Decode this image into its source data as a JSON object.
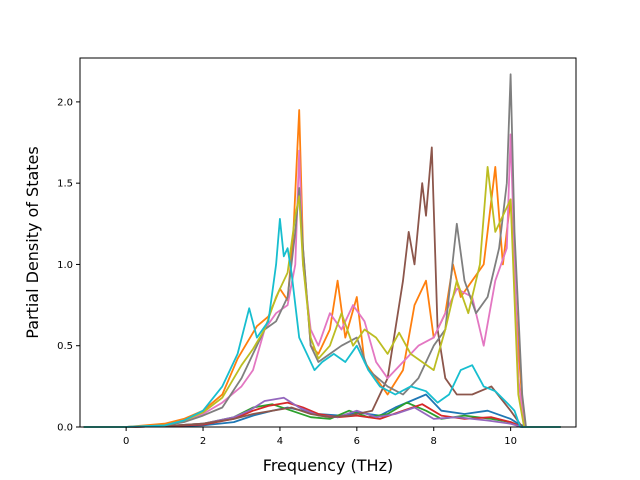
{
  "chart_data": {
    "type": "line",
    "title": "",
    "xlabel": "Frequency (THz)",
    "ylabel": "Partial Density of States",
    "xlim": [
      -1.2,
      11.7
    ],
    "ylim": [
      0.0,
      2.27
    ],
    "xticks": [
      0,
      2,
      4,
      6,
      8,
      10
    ],
    "xtick_labels": [
      "0",
      "2",
      "4",
      "6",
      "8",
      "10"
    ],
    "yticks": [
      0.0,
      0.5,
      1.0,
      1.5,
      2.0
    ],
    "ytick_labels": [
      "0.0",
      "0.5",
      "1.0",
      "1.5",
      "2.0"
    ],
    "grid": false,
    "legend": "none",
    "series": [
      {
        "color": "#1f77b4",
        "points": [
          [
            -1.1,
            0
          ],
          [
            0,
            0
          ],
          [
            1,
            0.005
          ],
          [
            2,
            0.01
          ],
          [
            2.8,
            0.03
          ],
          [
            3.3,
            0.07
          ],
          [
            3.8,
            0.1
          ],
          [
            4.2,
            0.12
          ],
          [
            4.6,
            0.1
          ],
          [
            5,
            0.08
          ],
          [
            5.6,
            0.07
          ],
          [
            6,
            0.09
          ],
          [
            6.6,
            0.07
          ],
          [
            7,
            0.12
          ],
          [
            7.4,
            0.16
          ],
          [
            7.8,
            0.2
          ],
          [
            8.2,
            0.1
          ],
          [
            8.8,
            0.08
          ],
          [
            9.4,
            0.1
          ],
          [
            10,
            0.05
          ],
          [
            10.2,
            0.02
          ],
          [
            10.4,
            0
          ],
          [
            11.3,
            0
          ]
        ]
      },
      {
        "color": "#ff7f0e",
        "points": [
          [
            -1.1,
            0
          ],
          [
            0,
            0
          ],
          [
            1,
            0.02
          ],
          [
            1.5,
            0.05
          ],
          [
            2,
            0.1
          ],
          [
            2.5,
            0.2
          ],
          [
            2.9,
            0.42
          ],
          [
            3.1,
            0.5
          ],
          [
            3.4,
            0.62
          ],
          [
            3.7,
            0.68
          ],
          [
            4,
            0.85
          ],
          [
            4.2,
            0.78
          ],
          [
            4.35,
            1.2
          ],
          [
            4.5,
            1.95
          ],
          [
            4.6,
            1.1
          ],
          [
            4.8,
            0.5
          ],
          [
            5,
            0.45
          ],
          [
            5.3,
            0.6
          ],
          [
            5.5,
            0.9
          ],
          [
            5.7,
            0.55
          ],
          [
            6,
            0.8
          ],
          [
            6.2,
            0.4
          ],
          [
            6.5,
            0.3
          ],
          [
            6.8,
            0.2
          ],
          [
            7.2,
            0.35
          ],
          [
            7.5,
            0.75
          ],
          [
            7.8,
            0.9
          ],
          [
            8,
            0.55
          ],
          [
            8.3,
            0.7
          ],
          [
            8.5,
            1.0
          ],
          [
            8.7,
            0.8
          ],
          [
            9,
            0.9
          ],
          [
            9.3,
            1.0
          ],
          [
            9.6,
            1.6
          ],
          [
            9.8,
            1.0
          ],
          [
            10,
            1.4
          ],
          [
            10.2,
            0.5
          ],
          [
            10.35,
            0
          ],
          [
            11.3,
            0
          ]
        ]
      },
      {
        "color": "#2ca02c",
        "points": [
          [
            -1.1,
            0
          ],
          [
            0,
            0
          ],
          [
            1,
            0.005
          ],
          [
            2,
            0.02
          ],
          [
            2.8,
            0.06
          ],
          [
            3.3,
            0.12
          ],
          [
            3.8,
            0.14
          ],
          [
            4.3,
            0.1
          ],
          [
            4.8,
            0.06
          ],
          [
            5.3,
            0.05
          ],
          [
            5.8,
            0.1
          ],
          [
            6.3,
            0.06
          ],
          [
            6.8,
            0.08
          ],
          [
            7.3,
            0.15
          ],
          [
            7.8,
            0.1
          ],
          [
            8.2,
            0.05
          ],
          [
            8.8,
            0.07
          ],
          [
            9.5,
            0.05
          ],
          [
            10,
            0.03
          ],
          [
            10.3,
            0
          ],
          [
            11.3,
            0
          ]
        ]
      },
      {
        "color": "#d62728",
        "points": [
          [
            -1.1,
            0
          ],
          [
            0,
            0
          ],
          [
            1,
            0.005
          ],
          [
            2,
            0.015
          ],
          [
            2.8,
            0.05
          ],
          [
            3.3,
            0.1
          ],
          [
            3.7,
            0.13
          ],
          [
            4.2,
            0.15
          ],
          [
            4.6,
            0.12
          ],
          [
            5,
            0.08
          ],
          [
            5.5,
            0.06
          ],
          [
            6,
            0.07
          ],
          [
            6.6,
            0.05
          ],
          [
            7.2,
            0.1
          ],
          [
            7.7,
            0.14
          ],
          [
            8.2,
            0.07
          ],
          [
            8.8,
            0.05
          ],
          [
            9.5,
            0.06
          ],
          [
            10,
            0.03
          ],
          [
            10.3,
            0
          ],
          [
            11.3,
            0
          ]
        ]
      },
      {
        "color": "#9467bd",
        "points": [
          [
            -1.1,
            0
          ],
          [
            0,
            0
          ],
          [
            1,
            0.005
          ],
          [
            2,
            0.02
          ],
          [
            2.8,
            0.06
          ],
          [
            3.2,
            0.1
          ],
          [
            3.6,
            0.16
          ],
          [
            4.1,
            0.18
          ],
          [
            4.5,
            0.12
          ],
          [
            5,
            0.07
          ],
          [
            5.5,
            0.06
          ],
          [
            6,
            0.1
          ],
          [
            6.5,
            0.06
          ],
          [
            7,
            0.08
          ],
          [
            7.5,
            0.12
          ],
          [
            8,
            0.05
          ],
          [
            8.6,
            0.06
          ],
          [
            9.4,
            0.04
          ],
          [
            10,
            0.02
          ],
          [
            10.3,
            0
          ],
          [
            11.3,
            0
          ]
        ]
      },
      {
        "color": "#8c564b",
        "points": [
          [
            -1.1,
            0
          ],
          [
            0,
            0
          ],
          [
            1,
            0.005
          ],
          [
            2,
            0.02
          ],
          [
            2.8,
            0.05
          ],
          [
            3.3,
            0.08
          ],
          [
            3.8,
            0.1
          ],
          [
            4.3,
            0.12
          ],
          [
            4.8,
            0.08
          ],
          [
            5.3,
            0.06
          ],
          [
            5.8,
            0.07
          ],
          [
            6.4,
            0.1
          ],
          [
            6.8,
            0.3
          ],
          [
            7,
            0.6
          ],
          [
            7.2,
            0.9
          ],
          [
            7.35,
            1.2
          ],
          [
            7.5,
            1.0
          ],
          [
            7.7,
            1.5
          ],
          [
            7.8,
            1.3
          ],
          [
            7.95,
            1.72
          ],
          [
            8.1,
            0.6
          ],
          [
            8.3,
            0.3
          ],
          [
            8.6,
            0.2
          ],
          [
            9,
            0.2
          ],
          [
            9.5,
            0.25
          ],
          [
            10,
            0.1
          ],
          [
            10.3,
            0
          ],
          [
            11.3,
            0
          ]
        ]
      },
      {
        "color": "#e377c2",
        "points": [
          [
            -1.1,
            0
          ],
          [
            0,
            0
          ],
          [
            1,
            0.01
          ],
          [
            1.5,
            0.04
          ],
          [
            2,
            0.08
          ],
          [
            2.5,
            0.15
          ],
          [
            3,
            0.25
          ],
          [
            3.3,
            0.35
          ],
          [
            3.6,
            0.6
          ],
          [
            3.9,
            0.7
          ],
          [
            4.2,
            0.75
          ],
          [
            4.4,
            1.0
          ],
          [
            4.5,
            1.7
          ],
          [
            4.6,
            1.0
          ],
          [
            4.8,
            0.6
          ],
          [
            5,
            0.5
          ],
          [
            5.3,
            0.7
          ],
          [
            5.6,
            0.6
          ],
          [
            5.9,
            0.75
          ],
          [
            6.2,
            0.65
          ],
          [
            6.5,
            0.4
          ],
          [
            6.8,
            0.3
          ],
          [
            7.2,
            0.4
          ],
          [
            7.6,
            0.5
          ],
          [
            8,
            0.55
          ],
          [
            8.3,
            0.7
          ],
          [
            8.6,
            0.85
          ],
          [
            9,
            0.8
          ],
          [
            9.3,
            0.5
          ],
          [
            9.6,
            0.9
          ],
          [
            9.9,
            1.1
          ],
          [
            10,
            1.8
          ],
          [
            10.2,
            0.3
          ],
          [
            10.35,
            0
          ],
          [
            11.3,
            0
          ]
        ]
      },
      {
        "color": "#7f7f7f",
        "points": [
          [
            -1.1,
            0
          ],
          [
            0,
            0
          ],
          [
            1,
            0.01
          ],
          [
            1.5,
            0.03
          ],
          [
            2,
            0.07
          ],
          [
            2.5,
            0.12
          ],
          [
            3,
            0.3
          ],
          [
            3.3,
            0.45
          ],
          [
            3.6,
            0.6
          ],
          [
            3.9,
            0.65
          ],
          [
            4.2,
            0.8
          ],
          [
            4.4,
            1.2
          ],
          [
            4.5,
            1.47
          ],
          [
            4.6,
            1.1
          ],
          [
            4.8,
            0.5
          ],
          [
            5,
            0.4
          ],
          [
            5.3,
            0.45
          ],
          [
            5.6,
            0.5
          ],
          [
            6,
            0.55
          ],
          [
            6.3,
            0.35
          ],
          [
            6.8,
            0.25
          ],
          [
            7.2,
            0.2
          ],
          [
            7.6,
            0.3
          ],
          [
            8,
            0.5
          ],
          [
            8.3,
            0.6
          ],
          [
            8.6,
            1.25
          ],
          [
            8.8,
            0.9
          ],
          [
            9.1,
            0.7
          ],
          [
            9.4,
            0.8
          ],
          [
            9.7,
            1.1
          ],
          [
            9.9,
            1.5
          ],
          [
            10,
            2.17
          ],
          [
            10.1,
            1.2
          ],
          [
            10.3,
            0.2
          ],
          [
            10.4,
            0
          ],
          [
            11.3,
            0
          ]
        ]
      },
      {
        "color": "#bcbd22",
        "points": [
          [
            -1.1,
            0
          ],
          [
            0,
            0
          ],
          [
            1,
            0.01
          ],
          [
            1.5,
            0.04
          ],
          [
            2,
            0.09
          ],
          [
            2.5,
            0.18
          ],
          [
            3,
            0.38
          ],
          [
            3.3,
            0.48
          ],
          [
            3.6,
            0.6
          ],
          [
            3.9,
            0.8
          ],
          [
            4.2,
            0.95
          ],
          [
            4.4,
            1.3
          ],
          [
            4.5,
            1.42
          ],
          [
            4.6,
            1.0
          ],
          [
            4.8,
            0.55
          ],
          [
            5,
            0.42
          ],
          [
            5.3,
            0.5
          ],
          [
            5.6,
            0.7
          ],
          [
            5.9,
            0.5
          ],
          [
            6.2,
            0.6
          ],
          [
            6.5,
            0.55
          ],
          [
            6.8,
            0.45
          ],
          [
            7.1,
            0.58
          ],
          [
            7.4,
            0.45
          ],
          [
            7.7,
            0.4
          ],
          [
            8,
            0.35
          ],
          [
            8.3,
            0.6
          ],
          [
            8.6,
            0.9
          ],
          [
            8.9,
            0.7
          ],
          [
            9.2,
            1.0
          ],
          [
            9.4,
            1.6
          ],
          [
            9.6,
            1.2
          ],
          [
            9.8,
            1.3
          ],
          [
            10,
            1.4
          ],
          [
            10.2,
            0.2
          ],
          [
            10.35,
            0
          ],
          [
            11.3,
            0
          ]
        ]
      },
      {
        "color": "#17becf",
        "points": [
          [
            -1.1,
            0
          ],
          [
            0,
            0
          ],
          [
            1,
            0.01
          ],
          [
            1.5,
            0.04
          ],
          [
            2,
            0.1
          ],
          [
            2.5,
            0.25
          ],
          [
            2.9,
            0.45
          ],
          [
            3.2,
            0.73
          ],
          [
            3.4,
            0.55
          ],
          [
            3.7,
            0.65
          ],
          [
            3.9,
            1.0
          ],
          [
            4,
            1.28
          ],
          [
            4.1,
            1.05
          ],
          [
            4.2,
            1.1
          ],
          [
            4.3,
            0.95
          ],
          [
            4.5,
            0.55
          ],
          [
            4.7,
            0.45
          ],
          [
            4.9,
            0.35
          ],
          [
            5.1,
            0.4
          ],
          [
            5.4,
            0.45
          ],
          [
            5.7,
            0.4
          ],
          [
            6,
            0.5
          ],
          [
            6.3,
            0.35
          ],
          [
            6.6,
            0.25
          ],
          [
            7,
            0.2
          ],
          [
            7.4,
            0.25
          ],
          [
            7.8,
            0.22
          ],
          [
            8.1,
            0.15
          ],
          [
            8.4,
            0.2
          ],
          [
            8.7,
            0.35
          ],
          [
            9,
            0.38
          ],
          [
            9.3,
            0.25
          ],
          [
            9.6,
            0.22
          ],
          [
            9.9,
            0.15
          ],
          [
            10.1,
            0.1
          ],
          [
            10.25,
            0
          ],
          [
            11.3,
            0
          ]
        ]
      }
    ]
  }
}
